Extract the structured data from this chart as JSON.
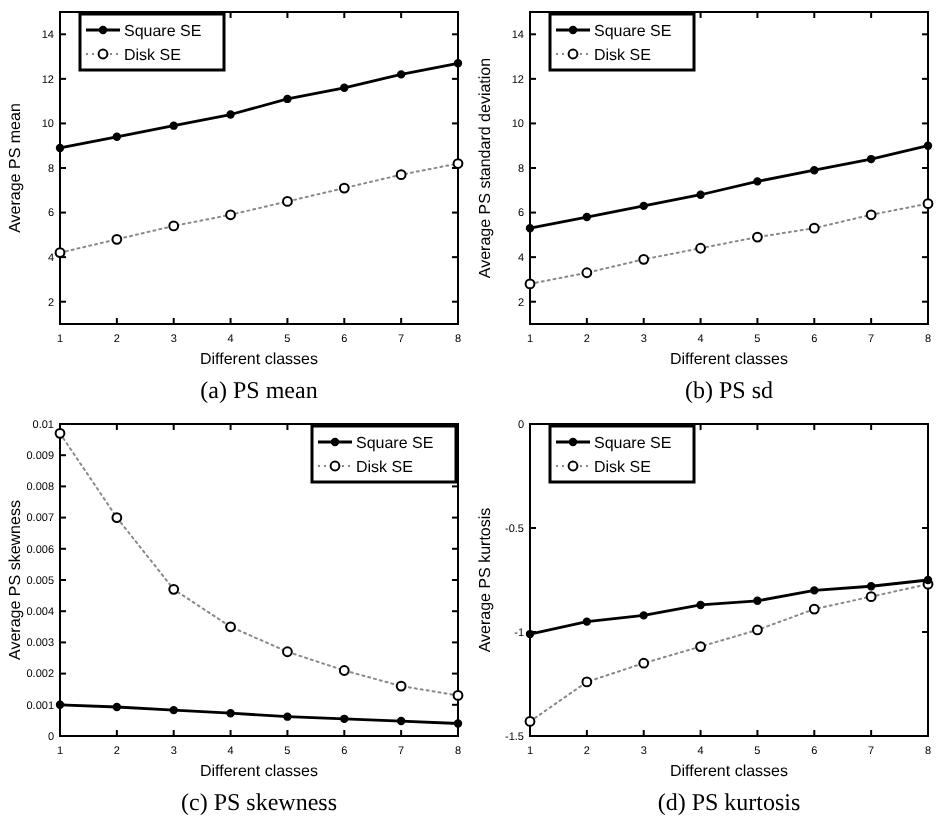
{
  "chart_data": [
    {
      "type": "line",
      "title": "(a) PS mean",
      "xlabel": "Different classes",
      "ylabel": "Average PS mean",
      "x": [
        1,
        2,
        3,
        4,
        5,
        6,
        7,
        8
      ],
      "xlim": [
        1,
        8
      ],
      "xticks": [
        1,
        2,
        3,
        4,
        5,
        6,
        7,
        8
      ],
      "ylim": [
        1,
        15
      ],
      "yticks": [
        2,
        4,
        6,
        8,
        10,
        12,
        14
      ],
      "legend": "top left",
      "series": [
        {
          "name": "Square SE",
          "color": "#000000",
          "marker": "circle",
          "line_style": "solid",
          "values": [
            8.9,
            9.4,
            9.9,
            10.4,
            11.1,
            11.6,
            12.2,
            12.7
          ]
        },
        {
          "name": "Disk SE",
          "color": "#888888",
          "marker": "circle",
          "line_style": "dotted",
          "values": [
            4.2,
            4.8,
            5.4,
            5.9,
            6.5,
            7.1,
            7.7,
            8.2
          ]
        }
      ]
    },
    {
      "type": "line",
      "title": "(b) PS sd",
      "xlabel": "Different classes",
      "ylabel": "Average PS standard deviation",
      "x": [
        1,
        2,
        3,
        4,
        5,
        6,
        7,
        8
      ],
      "xlim": [
        1,
        8
      ],
      "xticks": [
        1,
        2,
        3,
        4,
        5,
        6,
        7,
        8
      ],
      "ylim": [
        1,
        15
      ],
      "yticks": [
        2,
        4,
        6,
        8,
        10,
        12,
        14
      ],
      "legend": "top left",
      "series": [
        {
          "name": "Square SE",
          "color": "#000000",
          "marker": "circle",
          "line_style": "solid",
          "values": [
            5.3,
            5.8,
            6.3,
            6.8,
            7.4,
            7.9,
            8.4,
            9.0
          ]
        },
        {
          "name": "Disk SE",
          "color": "#888888",
          "marker": "circle",
          "line_style": "dotted",
          "values": [
            2.8,
            3.3,
            3.9,
            4.4,
            4.9,
            5.3,
            5.9,
            6.4
          ]
        }
      ]
    },
    {
      "type": "line",
      "title": "(c) PS skewness",
      "xlabel": "Different classes",
      "ylabel": "Average PS skewness",
      "x": [
        1,
        2,
        3,
        4,
        5,
        6,
        7,
        8
      ],
      "xlim": [
        1,
        8
      ],
      "xticks": [
        1,
        2,
        3,
        4,
        5,
        6,
        7,
        8
      ],
      "ylim": [
        0,
        0.01
      ],
      "yticks": [
        0,
        0.001,
        0.002,
        0.003,
        0.004,
        0.005,
        0.006,
        0.007,
        0.008,
        0.009,
        0.01
      ],
      "legend": "top right",
      "series": [
        {
          "name": "Square SE",
          "color": "#000000",
          "marker": "circle",
          "line_style": "solid",
          "values": [
            0.001,
            0.00093,
            0.00083,
            0.00073,
            0.00062,
            0.00055,
            0.00048,
            0.0004
          ]
        },
        {
          "name": "Disk SE",
          "color": "#888888",
          "marker": "circle",
          "line_style": "dotted",
          "values": [
            0.0097,
            0.007,
            0.0047,
            0.0035,
            0.0027,
            0.0021,
            0.0016,
            0.0013
          ]
        }
      ]
    },
    {
      "type": "line",
      "title": "(d) PS kurtosis",
      "xlabel": "Different classes",
      "ylabel": "Average PS kurtosis",
      "x": [
        1,
        2,
        3,
        4,
        5,
        6,
        7,
        8
      ],
      "xlim": [
        1,
        8
      ],
      "xticks": [
        1,
        2,
        3,
        4,
        5,
        6,
        7,
        8
      ],
      "ylim": [
        -1.5,
        0
      ],
      "yticks": [
        -1.5,
        -1,
        -0.5,
        0
      ],
      "legend": "top left",
      "series": [
        {
          "name": "Square SE",
          "color": "#000000",
          "marker": "circle",
          "line_style": "solid",
          "values": [
            -1.01,
            -0.95,
            -0.92,
            -0.87,
            -0.85,
            -0.8,
            -0.78,
            -0.75
          ]
        },
        {
          "name": "Disk SE",
          "color": "#888888",
          "marker": "circle",
          "line_style": "dotted",
          "values": [
            -1.43,
            -1.24,
            -1.15,
            -1.07,
            -0.99,
            -0.89,
            -0.83,
            -0.77
          ]
        }
      ]
    }
  ]
}
